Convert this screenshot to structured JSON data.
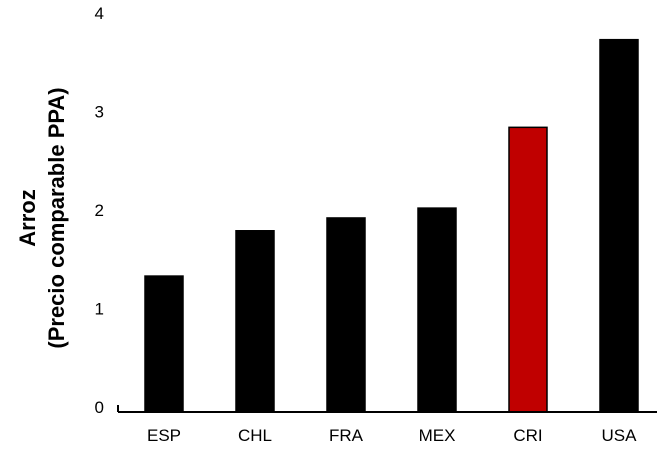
{
  "chart_data": {
    "type": "bar",
    "categories": [
      "ESP",
      "CHL",
      "FRA",
      "MEX",
      "CRI",
      "USA"
    ],
    "values": [
      1.38,
      1.84,
      1.97,
      2.07,
      2.89,
      3.78
    ],
    "bar_colors": [
      "#000000",
      "#000000",
      "#000000",
      "#000000",
      "#c00000",
      "#000000"
    ],
    "highlight_color": "#c00000",
    "default_color": "#000000",
    "ylabel_line1": "Arroz",
    "ylabel_line2": "(Precio comparable PPA)",
    "ylim": [
      0,
      4
    ],
    "yticks": [
      "0",
      "1",
      "2",
      "3",
      "4"
    ],
    "grid": false,
    "legend": "none"
  }
}
